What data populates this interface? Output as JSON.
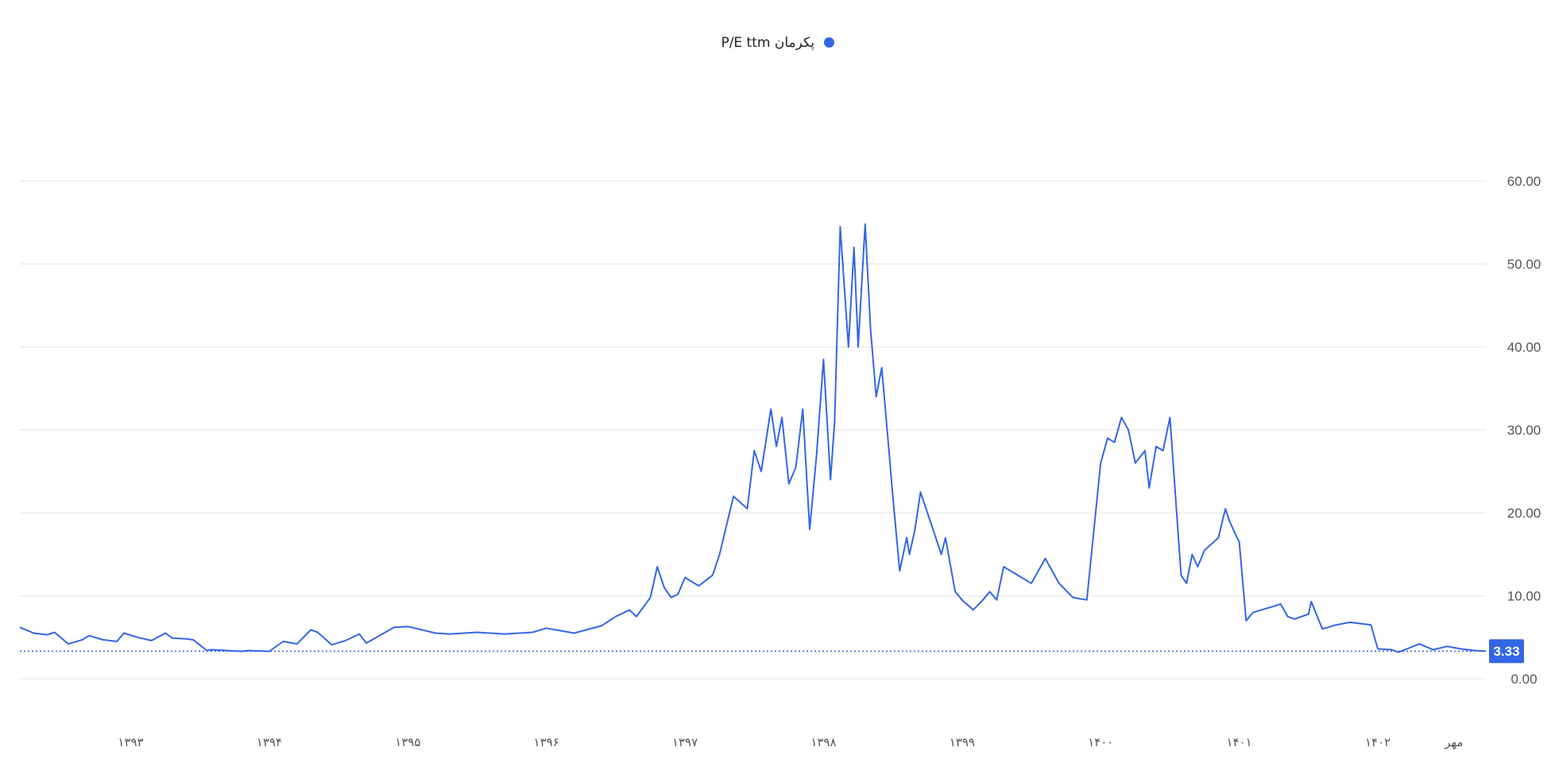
{
  "legend": {
    "label": "P/E ttm پکرمان",
    "color": "#3366e6"
  },
  "colors": {
    "line": "#3366e6",
    "grid": "#e5e5e5",
    "badge": "#3366e6"
  },
  "chart_data": {
    "type": "line",
    "title": "",
    "xlabel": "",
    "ylabel": "",
    "ylim": [
      0,
      60
    ],
    "yticks": [
      "60.00",
      "50.00",
      "40.00",
      "30.00",
      "20.00",
      "10.00",
      "0.00"
    ],
    "xticks": [
      "۱۳۹۳",
      "۱۳۹۴",
      "۱۳۹۵",
      "۱۳۹۶",
      "۱۳۹۷",
      "۱۳۹۸",
      "۱۳۹۹",
      "۱۴۰۰",
      "۱۴۰۱",
      "۱۴۰۲",
      "مهر"
    ],
    "xtick_values": [
      1393,
      1394,
      1395,
      1396,
      1397,
      1398,
      1399,
      1400,
      1401,
      1402,
      1402.55
    ],
    "xlim": [
      1392.2,
      1402.78
    ],
    "grid": true,
    "legend_position": "top-center",
    "last_value": "3.33",
    "series": [
      {
        "name": "P/E ttm پکرمان",
        "x": [
          1392.2,
          1392.3,
          1392.4,
          1392.45,
          1392.55,
          1392.65,
          1392.7,
          1392.8,
          1392.9,
          1392.95,
          1393.05,
          1393.15,
          1393.25,
          1393.3,
          1393.4,
          1393.45,
          1393.55,
          1393.58,
          1393.8,
          1393.85,
          1394.0,
          1394.1,
          1394.2,
          1394.3,
          1394.35,
          1394.45,
          1394.55,
          1394.65,
          1394.7,
          1394.9,
          1395.0,
          1395.2,
          1395.3,
          1395.5,
          1395.7,
          1395.9,
          1396.0,
          1396.2,
          1396.4,
          1396.5,
          1396.6,
          1396.65,
          1396.75,
          1396.8,
          1396.85,
          1396.9,
          1396.95,
          1397.0,
          1397.1,
          1397.2,
          1397.25,
          1397.35,
          1397.45,
          1397.5,
          1397.55,
          1397.62,
          1397.66,
          1397.7,
          1397.75,
          1397.8,
          1397.85,
          1397.9,
          1397.95,
          1398.0,
          1398.05,
          1398.08,
          1398.12,
          1398.18,
          1398.22,
          1398.25,
          1398.3,
          1398.34,
          1398.38,
          1398.42,
          1398.48,
          1398.5,
          1398.55,
          1398.6,
          1398.62,
          1398.66,
          1398.7,
          1398.75,
          1398.8,
          1398.85,
          1398.88,
          1398.95,
          1399.0,
          1399.08,
          1399.15,
          1399.2,
          1399.25,
          1399.3,
          1399.4,
          1399.5,
          1399.6,
          1399.7,
          1399.8,
          1399.9,
          1400.0,
          1400.05,
          1400.1,
          1400.15,
          1400.2,
          1400.25,
          1400.32,
          1400.35,
          1400.4,
          1400.45,
          1400.5,
          1400.58,
          1400.62,
          1400.66,
          1400.7,
          1400.75,
          1400.85,
          1400.9,
          1400.93,
          1400.97,
          1401.0,
          1401.05,
          1401.1,
          1401.2,
          1401.3,
          1401.35,
          1401.4,
          1401.5,
          1401.52,
          1401.6,
          1401.7,
          1401.8,
          1401.95,
          1402.0,
          1402.1,
          1402.15,
          1402.3,
          1402.4,
          1402.5,
          1402.6,
          1402.7,
          1402.78
        ],
        "values": [
          6.2,
          5.5,
          5.3,
          5.6,
          4.2,
          4.7,
          5.2,
          4.7,
          4.5,
          5.5,
          5.0,
          4.6,
          5.5,
          4.9,
          4.8,
          4.7,
          3.4,
          3.5,
          3.3,
          3.4,
          3.3,
          4.5,
          4.2,
          5.9,
          5.6,
          4.1,
          4.6,
          5.4,
          4.3,
          6.2,
          6.3,
          5.5,
          5.4,
          5.6,
          5.4,
          5.6,
          6.1,
          5.5,
          6.4,
          7.5,
          8.3,
          7.5,
          9.8,
          13.5,
          11.0,
          9.8,
          10.2,
          12.2,
          11.2,
          12.5,
          15.0,
          22.0,
          20.5,
          27.5,
          25.0,
          32.5,
          28.0,
          31.5,
          23.5,
          25.5,
          32.5,
          18.0,
          27.0,
          38.5,
          24.0,
          31.0,
          54.5,
          40.0,
          52.0,
          40.0,
          54.8,
          42.0,
          34.0,
          37.5,
          26.0,
          22.0,
          13.0,
          17.0,
          15.0,
          18.0,
          22.5,
          20.0,
          17.5,
          15.0,
          17.0,
          10.5,
          9.5,
          8.3,
          9.5,
          10.5,
          9.5,
          13.5,
          12.5,
          11.5,
          14.5,
          11.5,
          9.8,
          9.5,
          26.0,
          29.0,
          28.5,
          31.5,
          30.0,
          26.0,
          27.5,
          23.0,
          28.0,
          27.5,
          31.5,
          12.5,
          11.5,
          15.0,
          13.5,
          15.5,
          17.0,
          20.5,
          19.0,
          17.5,
          16.5,
          7.0,
          8.0,
          8.5,
          9.0,
          7.5,
          7.2,
          7.8,
          9.3,
          6.0,
          6.5,
          6.8,
          6.5,
          3.6,
          3.5,
          3.2,
          4.2,
          3.5,
          3.9,
          3.6,
          3.4,
          3.33
        ]
      }
    ]
  }
}
